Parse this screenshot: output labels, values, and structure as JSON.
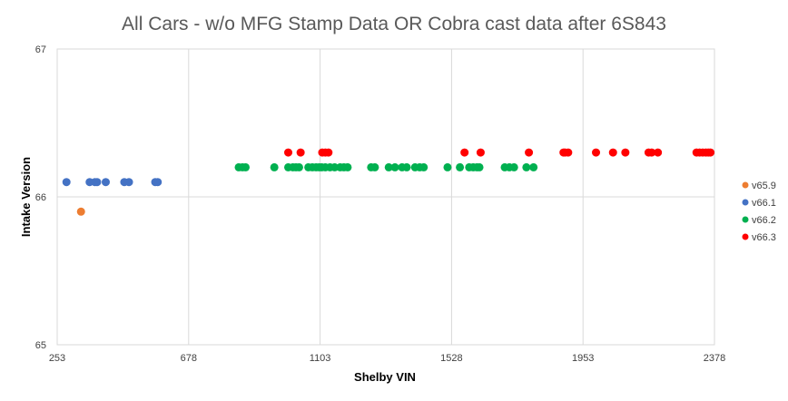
{
  "chart_data": {
    "type": "scatter",
    "title": "All Cars - w/o MFG Stamp Data OR Cobra cast data after 6S843",
    "xlabel": "Shelby VIN",
    "ylabel": "Intake Version",
    "xlim": [
      253,
      2378
    ],
    "ylim": [
      65,
      67
    ],
    "x_ticks": [
      "253",
      "678",
      "1103",
      "1528",
      "1953",
      "2378"
    ],
    "y_ticks": [
      "65",
      "66",
      "67"
    ],
    "x_tick_values": [
      253,
      678,
      1103,
      1528,
      1953,
      2378
    ],
    "y_tick_values": [
      65,
      66,
      67
    ],
    "grid": true,
    "legend_position": "right",
    "series": [
      {
        "name": "v65.9",
        "color": "#ED7D31",
        "y": 65.9,
        "x": [
          330
        ]
      },
      {
        "name": "v66.1",
        "color": "#4472C4",
        "y": 66.1,
        "x": [
          283,
          358,
          375,
          382,
          410,
          470,
          485,
          570,
          578
        ]
      },
      {
        "name": "v66.2",
        "color": "#00B050",
        "y": 66.2,
        "x": [
          840,
          852,
          862,
          955,
          1000,
          1015,
          1025,
          1035,
          1065,
          1078,
          1090,
          1100,
          1108,
          1120,
          1135,
          1150,
          1168,
          1180,
          1192,
          1268,
          1280,
          1325,
          1345,
          1368,
          1383,
          1410,
          1425,
          1438,
          1515,
          1555,
          1585,
          1598,
          1610,
          1618,
          1700,
          1715,
          1730,
          1770,
          1793
        ]
      },
      {
        "name": "v66.3",
        "color": "#FF0000",
        "y": 66.3,
        "x": [
          1000,
          1040,
          1110,
          1120,
          1130,
          1570,
          1622,
          1778,
          1890,
          1895,
          1905,
          1995,
          2050,
          2090,
          2165,
          2175,
          2195,
          2320,
          2330,
          2340,
          2350,
          2358,
          2365
        ]
      }
    ]
  }
}
